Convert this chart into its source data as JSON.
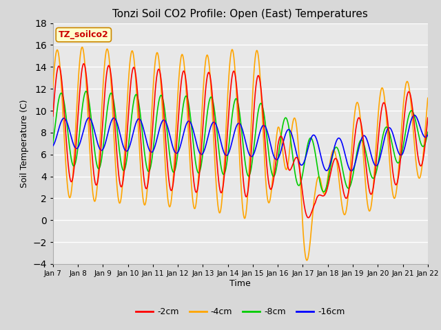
{
  "title": "Tonzi Soil CO2 Profile: Open (East) Temperatures",
  "xlabel": "Time",
  "ylabel": "Soil Temperature (C)",
  "ylim": [
    -4,
    18
  ],
  "yticks": [
    -4,
    -2,
    0,
    2,
    4,
    6,
    8,
    10,
    12,
    14,
    16,
    18
  ],
  "colors": {
    "2cm": "#ff0000",
    "4cm": "#ffa500",
    "8cm": "#00cc00",
    "16cm": "#0000ff"
  },
  "legend_labels": [
    "-2cm",
    "-4cm",
    "-8cm",
    "-16cm"
  ],
  "watermark_text": "TZ_soilco2",
  "watermark_color": "#cc0000",
  "watermark_bg": "#ffffcc",
  "watermark_border": "#cc8800",
  "bg_color": "#d8d8d8",
  "plot_bg_color": "#e8e8e8",
  "grid_color": "#ffffff",
  "xtick_labels": [
    "Jan 7",
    "Jan 8",
    "Jan 9",
    "Jan 10",
    "Jan 11",
    "Jan 12",
    "Jan 13",
    "Jan 14",
    "Jan 15",
    "Jan 16",
    "Jan 17",
    "Jan 18",
    "Jan 19",
    "Jan 20",
    "Jan 21",
    "Jan 22"
  ],
  "n_days": 15
}
